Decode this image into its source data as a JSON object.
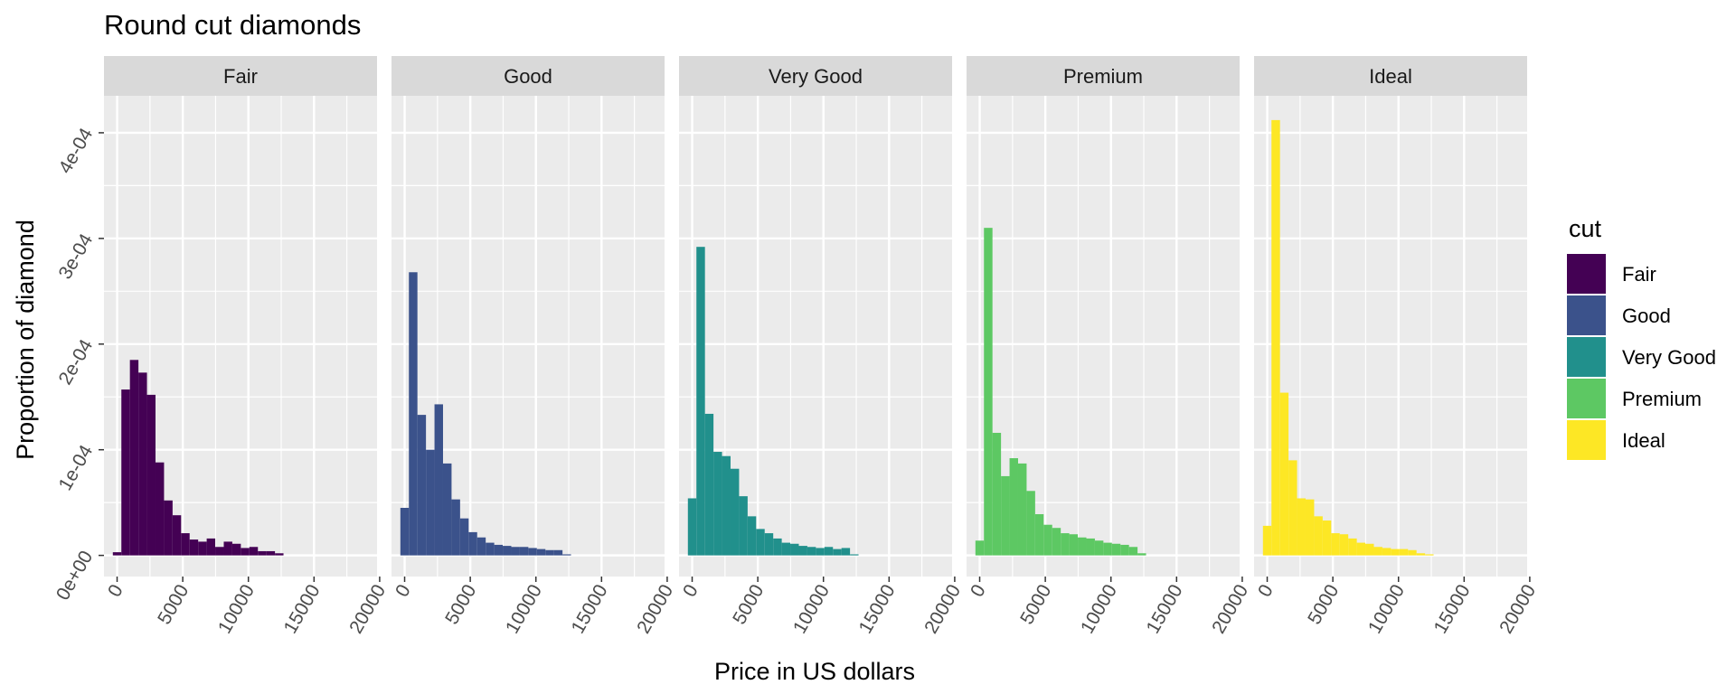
{
  "chart_data": {
    "type": "bar",
    "title": "Round cut diamonds",
    "xlabel": "Price in US dollars",
    "ylabel": "Proportion of diamond",
    "xlim": [
      -1000,
      19800
    ],
    "ylim": [
      -2e-05,
      0.000435
    ],
    "x_ticks": [
      0,
      5000,
      10000,
      15000,
      20000
    ],
    "x_tick_labels": [
      "0",
      "5000",
      "10000",
      "15000",
      "20000"
    ],
    "y_ticks": [
      0,
      0.0001,
      0.0002,
      0.0003,
      0.0004
    ],
    "y_tick_labels": [
      "0e+00",
      "1e-04",
      "2e-04",
      "3e-04",
      "4e-04"
    ],
    "grid": true,
    "bin_width": 650,
    "bin_start": -325,
    "legend": {
      "title": "cut",
      "position": "right",
      "entries": [
        "Fair",
        "Good",
        "Very Good",
        "Premium",
        "Ideal"
      ]
    },
    "facets": [
      {
        "name": "Fair",
        "color": "#440154",
        "values": [
          3e-06,
          0.000157,
          0.000185,
          0.000173,
          0.000152,
          8.8e-05,
          5.2e-05,
          3.8e-05,
          2.1e-05,
          1.5e-05,
          1.3e-05,
          1.6e-05,
          8e-06,
          1.3e-05,
          1.1e-05,
          7e-06,
          8e-06,
          4e-06,
          4e-06,
          2e-06
        ]
      },
      {
        "name": "Good",
        "color": "#3b528b",
        "values": [
          4.5e-05,
          0.000268,
          0.000133,
          0.0001,
          0.000143,
          8.7e-05,
          5.3e-05,
          3.5e-05,
          2.2e-05,
          1.7e-05,
          1.2e-05,
          1e-05,
          9e-06,
          8e-06,
          8e-06,
          7e-06,
          6e-06,
          5e-06,
          5e-06,
          1e-06
        ]
      },
      {
        "name": "Very Good",
        "color": "#21908c",
        "values": [
          5.4e-05,
          0.000292,
          0.000134,
          9.8e-05,
          9.4e-05,
          8.2e-05,
          5.6e-05,
          3.7e-05,
          2.5e-05,
          2.1e-05,
          1.6e-05,
          1.2e-05,
          1.1e-05,
          9e-06,
          8e-06,
          7e-06,
          8e-06,
          6e-06,
          7e-06,
          1e-06
        ]
      },
      {
        "name": "Premium",
        "color": "#5dc863",
        "values": [
          1.4e-05,
          0.00031,
          0.000116,
          7.5e-05,
          9.2e-05,
          8.7e-05,
          6.1e-05,
          3.9e-05,
          2.9e-05,
          2.6e-05,
          2.1e-05,
          2e-05,
          1.7e-05,
          1.6e-05,
          1.4e-05,
          1.2e-05,
          1.1e-05,
          1e-05,
          8e-06,
          2e-06
        ]
      },
      {
        "name": "Ideal",
        "color": "#fde725",
        "values": [
          2.8e-05,
          0.000412,
          0.000154,
          9e-05,
          5.4e-05,
          5.3e-05,
          3.7e-05,
          3.3e-05,
          2.1e-05,
          2e-05,
          1.6e-05,
          1.2e-05,
          1.1e-05,
          8e-06,
          7e-06,
          6e-06,
          6e-06,
          5e-06,
          2e-06,
          1e-06
        ]
      }
    ]
  }
}
